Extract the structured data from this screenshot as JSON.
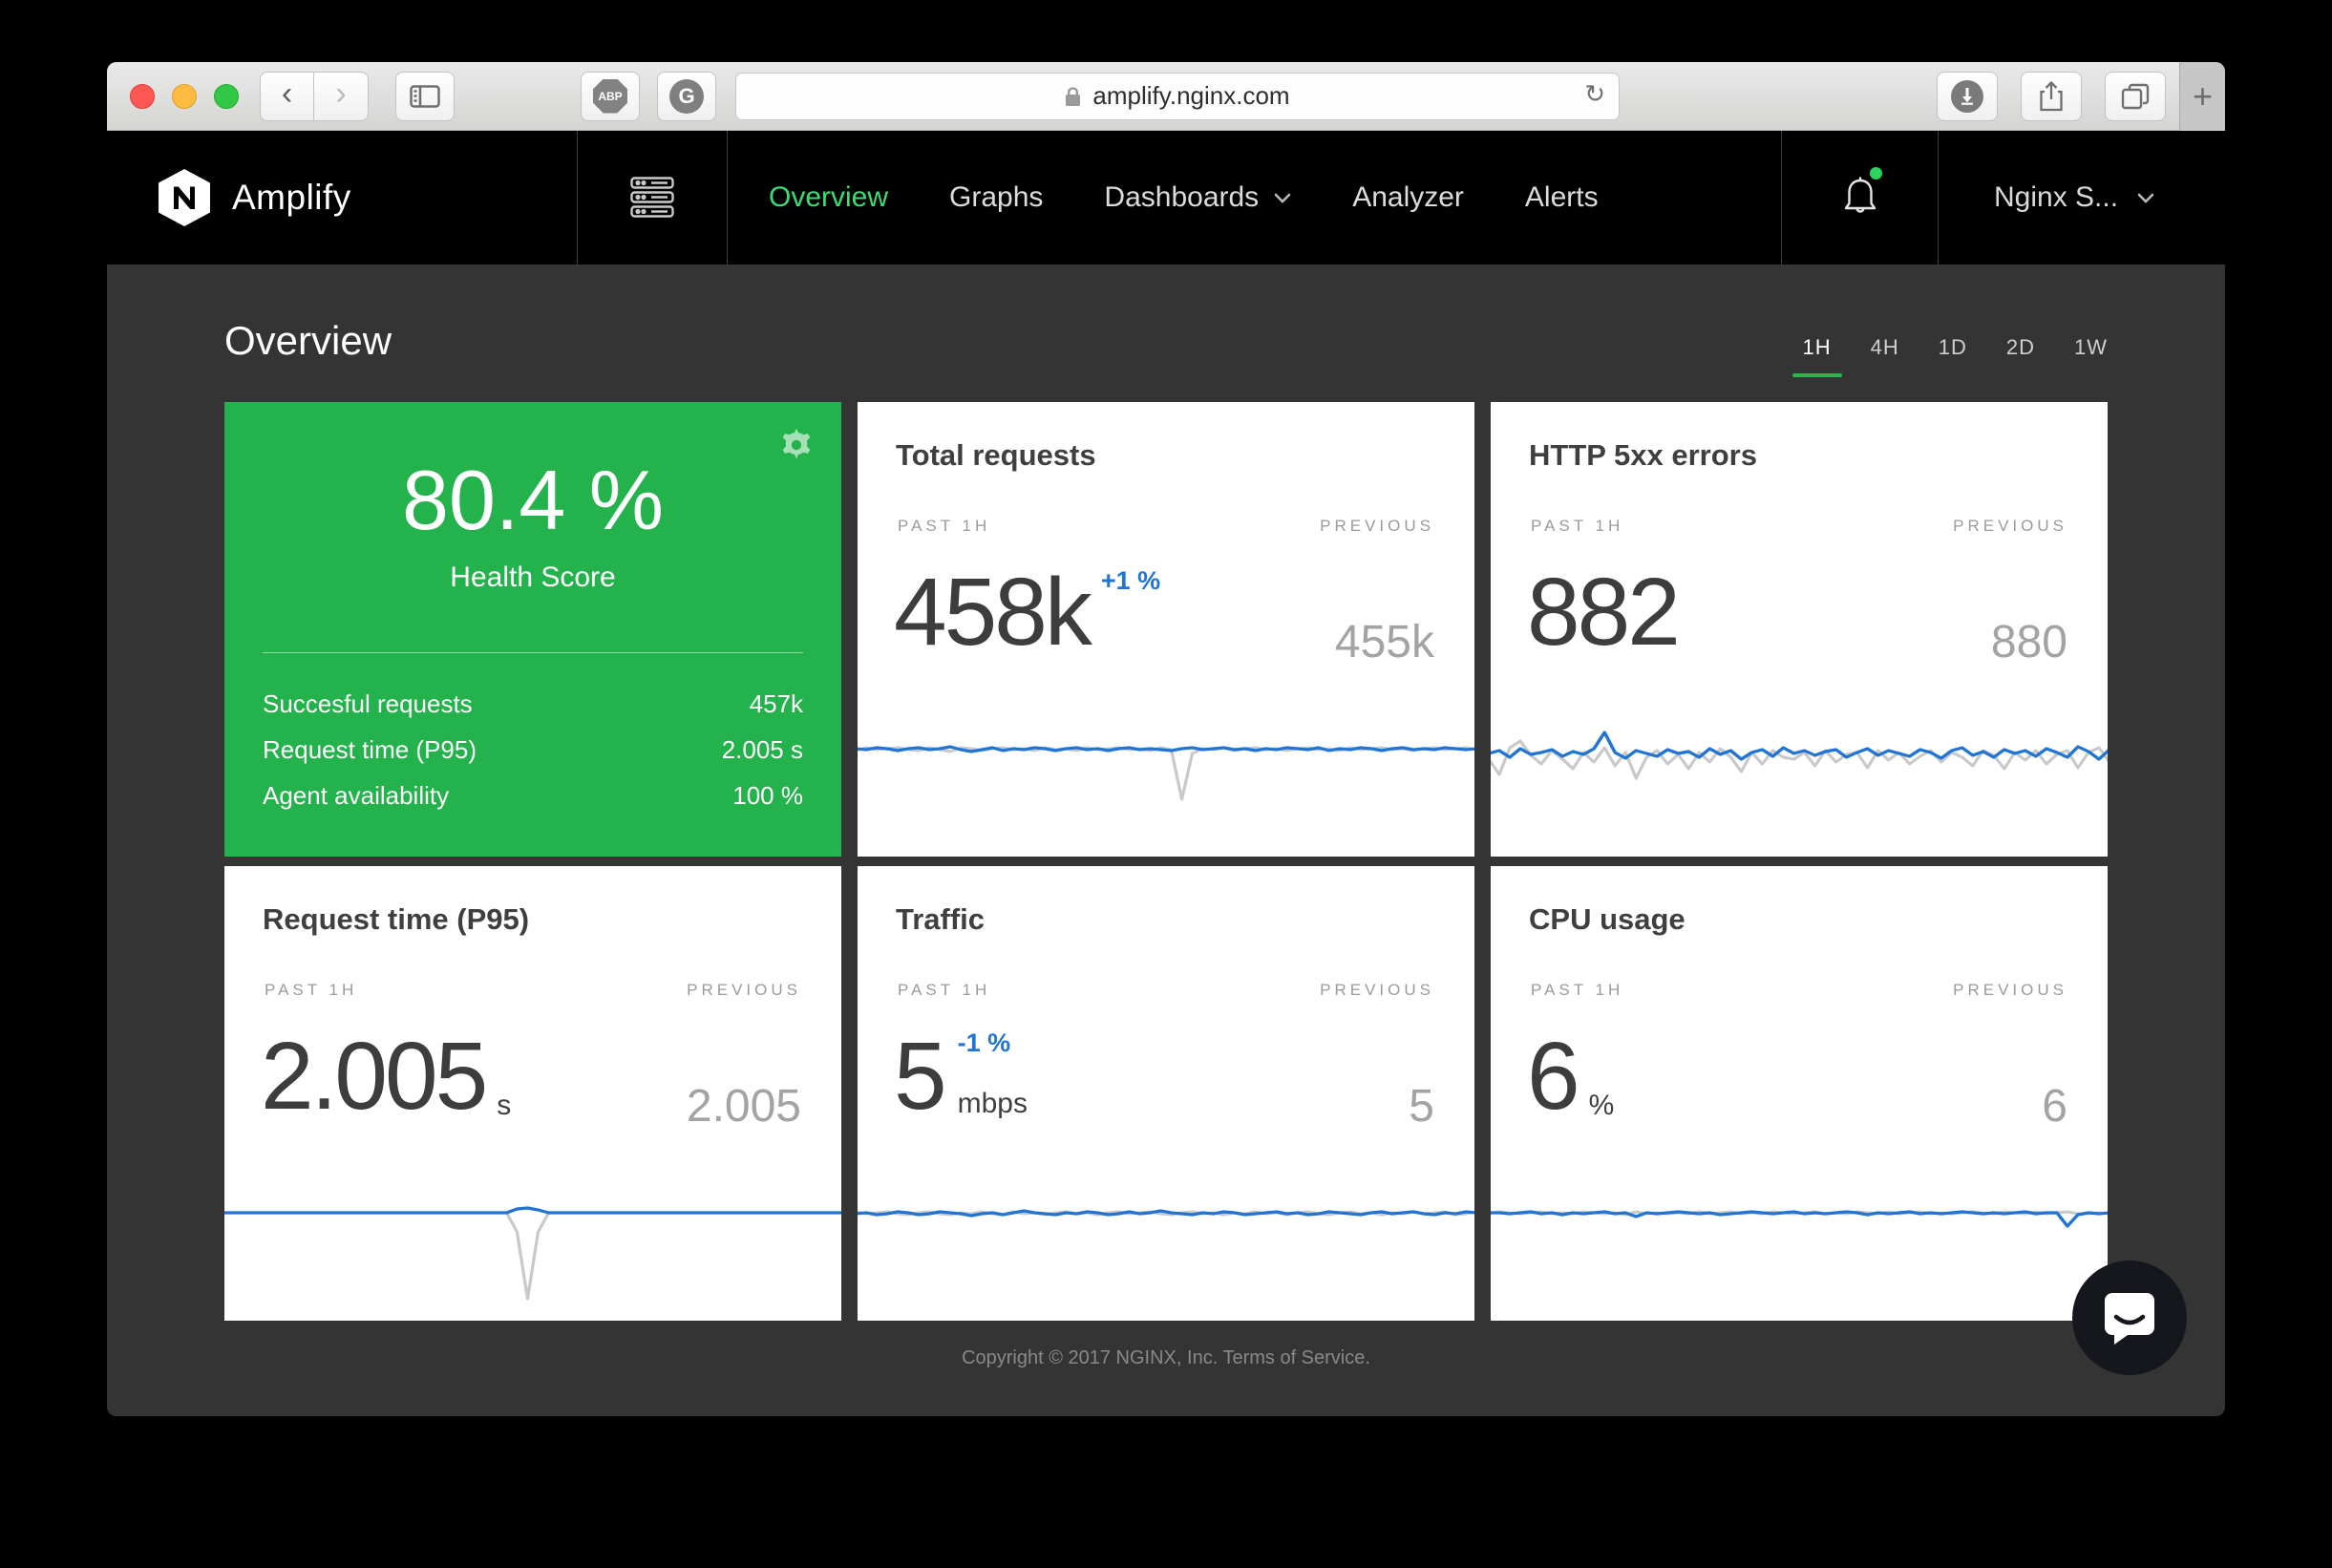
{
  "browser": {
    "url": "amplify.nginx.com",
    "abp_label": "ABP",
    "grammarly_label": "G",
    "new_tab_label": "+",
    "back_glyph": "‹",
    "forward_glyph": "›",
    "reload_glyph": "↻"
  },
  "nav": {
    "brand": "Amplify",
    "logo_letter": "N",
    "items": [
      {
        "label": "Overview",
        "active": true
      },
      {
        "label": "Graphs",
        "active": false
      },
      {
        "label": "Dashboards",
        "active": false
      },
      {
        "label": "Analyzer",
        "active": false
      },
      {
        "label": "Alerts",
        "active": false
      }
    ],
    "account_label": "Nginx S..."
  },
  "page": {
    "title": "Overview",
    "time_ranges": [
      "1H",
      "4H",
      "1D",
      "2D",
      "1W"
    ],
    "active_range": "1H"
  },
  "health": {
    "score": "80.4 %",
    "label": "Health Score",
    "stats": [
      {
        "label": "Succesful requests",
        "value": "457k"
      },
      {
        "label": "Request time (P95)",
        "value": "2.005 s"
      },
      {
        "label": "Agent availability",
        "value": "100 %"
      }
    ]
  },
  "cards": [
    {
      "title": "Total requests",
      "past_label": "PAST 1H",
      "prev_label": "PREVIOUS",
      "value": "458k",
      "delta": "+1 %",
      "prev": "455k"
    },
    {
      "title": "HTTP 5xx errors",
      "past_label": "PAST 1H",
      "prev_label": "PREVIOUS",
      "value": "882",
      "prev": "880"
    },
    {
      "title": "Request time (P95)",
      "past_label": "PAST 1H",
      "prev_label": "PREVIOUS",
      "value": "2.005",
      "unit": "s",
      "prev": "2.005"
    },
    {
      "title": "Traffic",
      "past_label": "PAST 1H",
      "prev_label": "PREVIOUS",
      "value": "5",
      "delta": "-1 %",
      "unit": "mbps",
      "prev": "5"
    },
    {
      "title": "CPU usage",
      "past_label": "PAST 1H",
      "prev_label": "PREVIOUS",
      "value": "6",
      "unit": "%",
      "prev": "6"
    }
  ],
  "sparklines": {
    "total_requests": {
      "blue": [
        25,
        26,
        24,
        25,
        27,
        25,
        24,
        26,
        25,
        23,
        26,
        28,
        26,
        24,
        27,
        25,
        26,
        24,
        25,
        27,
        25,
        24,
        26,
        25,
        27,
        25,
        24,
        26,
        25,
        26,
        27,
        25,
        24,
        26,
        25,
        24,
        26,
        25,
        27,
        25,
        26,
        24,
        25,
        26,
        24,
        27,
        25,
        26,
        24,
        25,
        27,
        25,
        24,
        26,
        25,
        26,
        24,
        25,
        26,
        25
      ],
      "gray": [
        27,
        24,
        26,
        25,
        24,
        26,
        27,
        24,
        26,
        28,
        24,
        25,
        27,
        25,
        24,
        26,
        25,
        27,
        24,
        26,
        25,
        27,
        24,
        26,
        25,
        24,
        26,
        25,
        27,
        24,
        26,
        78,
        30,
        25,
        26,
        24,
        27,
        25,
        24,
        26,
        25,
        27,
        25,
        24,
        26,
        25,
        27,
        24,
        26,
        25,
        24,
        26,
        25,
        27,
        25,
        24,
        26,
        25,
        24,
        26
      ]
    },
    "http_5xx": {
      "blue": [
        30,
        27,
        34,
        25,
        31,
        29,
        26,
        33,
        28,
        31,
        25,
        8,
        29,
        35,
        27,
        30,
        33,
        26,
        30,
        28,
        34,
        25,
        31,
        27,
        36,
        29,
        26,
        33,
        24,
        30,
        27,
        32,
        28,
        26,
        34,
        29,
        25,
        32,
        27,
        30,
        33,
        26,
        29,
        35,
        27,
        24,
        32,
        28,
        34,
        26,
        30,
        27,
        33,
        25,
        29,
        34,
        23,
        28,
        36,
        26
      ],
      "gray": [
        36,
        52,
        24,
        17,
        32,
        41,
        27,
        36,
        46,
        29,
        39,
        24,
        43,
        29,
        56,
        34,
        27,
        41,
        31,
        46,
        29,
        39,
        25,
        34,
        49,
        29,
        41,
        27,
        34,
        36,
        29,
        43,
        27,
        39,
        31,
        29,
        45,
        27,
        37,
        29,
        41,
        33,
        27,
        39,
        29,
        34,
        43,
        27,
        32,
        46,
        29,
        37,
        27,
        41,
        31,
        27,
        45,
        29,
        24,
        39
      ]
    },
    "request_time": {
      "blue": [
        25,
        25,
        25,
        25,
        25,
        25,
        25,
        25,
        25,
        25,
        25,
        25,
        25,
        25,
        25,
        25,
        25,
        25,
        25,
        25,
        25,
        25,
        25,
        25,
        25,
        25,
        25,
        25,
        21,
        20,
        22,
        25,
        25,
        25,
        25,
        25,
        25,
        25,
        25,
        25,
        25,
        25,
        25,
        25,
        25,
        25,
        25,
        25,
        25,
        25,
        25,
        25,
        25,
        25,
        25,
        25,
        25,
        25,
        25,
        25
      ],
      "gray": [
        25,
        25,
        25,
        25,
        25,
        25,
        25,
        25,
        25,
        25,
        25,
        25,
        25,
        25,
        25,
        25,
        25,
        25,
        25,
        25,
        25,
        25,
        25,
        25,
        25,
        25,
        25,
        25,
        45,
        115,
        45,
        25,
        25,
        25,
        25,
        25,
        25,
        25,
        25,
        25,
        25,
        25,
        25,
        25,
        25,
        25,
        25,
        25,
        25,
        25,
        25,
        25,
        25,
        25,
        25,
        25,
        25,
        25,
        25,
        25
      ]
    },
    "traffic": {
      "blue": [
        26,
        25,
        27,
        26,
        24,
        25,
        27,
        26,
        24,
        25,
        26,
        28,
        26,
        25,
        27,
        25,
        23,
        25,
        26,
        27,
        25,
        26,
        24,
        25,
        27,
        26,
        24,
        26,
        25,
        23,
        25,
        26,
        27,
        25,
        26,
        24,
        25,
        27,
        26,
        25,
        24,
        26,
        25,
        27,
        26,
        24,
        25,
        26,
        27,
        25,
        24,
        26,
        25,
        24,
        26,
        27,
        25,
        26,
        24,
        25
      ],
      "gray": [
        24,
        26,
        25,
        24,
        26,
        27,
        25,
        24,
        26,
        27,
        25,
        26,
        24,
        26,
        27,
        24,
        26,
        25,
        27,
        25,
        24,
        26,
        25,
        27,
        25,
        24,
        26,
        25,
        24,
        26,
        27,
        25,
        24,
        26,
        25,
        27,
        25,
        26,
        24,
        26,
        25,
        27,
        25,
        24,
        26,
        27,
        25,
        24,
        26,
        25,
        27,
        25,
        26,
        24,
        26,
        25,
        24,
        27,
        26,
        24
      ]
    },
    "cpu": {
      "blue": [
        25,
        25,
        26,
        25,
        24,
        26,
        25,
        27,
        25,
        26,
        25,
        24,
        26,
        25,
        29,
        25,
        26,
        25,
        24,
        25,
        26,
        25,
        27,
        26,
        25,
        24,
        25,
        26,
        25,
        24,
        26,
        25,
        26,
        25,
        24,
        25,
        27,
        25,
        26,
        25,
        24,
        26,
        25,
        26,
        25,
        24,
        25,
        26,
        25,
        26,
        25,
        24,
        26,
        25,
        25,
        39,
        27,
        25,
        26,
        25
      ],
      "gray": [
        26,
        24,
        25,
        26,
        25,
        24,
        26,
        25,
        26,
        24,
        25,
        26,
        25,
        27,
        24,
        26,
        25,
        26,
        25,
        26,
        24,
        26,
        25,
        24,
        26,
        25,
        26,
        24,
        25,
        26,
        25,
        24,
        26,
        25,
        26,
        24,
        25,
        26,
        24,
        26,
        25,
        24,
        26,
        25,
        26,
        25,
        24,
        25,
        26,
        24,
        25,
        26,
        24,
        26,
        25,
        24,
        26,
        26,
        25,
        26
      ]
    }
  },
  "footer": {
    "copyright": "Copyright © 2017 NGINX, Inc. Terms of Service."
  },
  "colors": {
    "accent_green": "#23b24c",
    "nav_active_green": "#3bdd73",
    "underline_green": "#2eb551",
    "spark_blue": "#1f74d4",
    "spark_gray": "#c9c9c9",
    "content_bg": "#343434",
    "nav_bg": "#000000"
  }
}
